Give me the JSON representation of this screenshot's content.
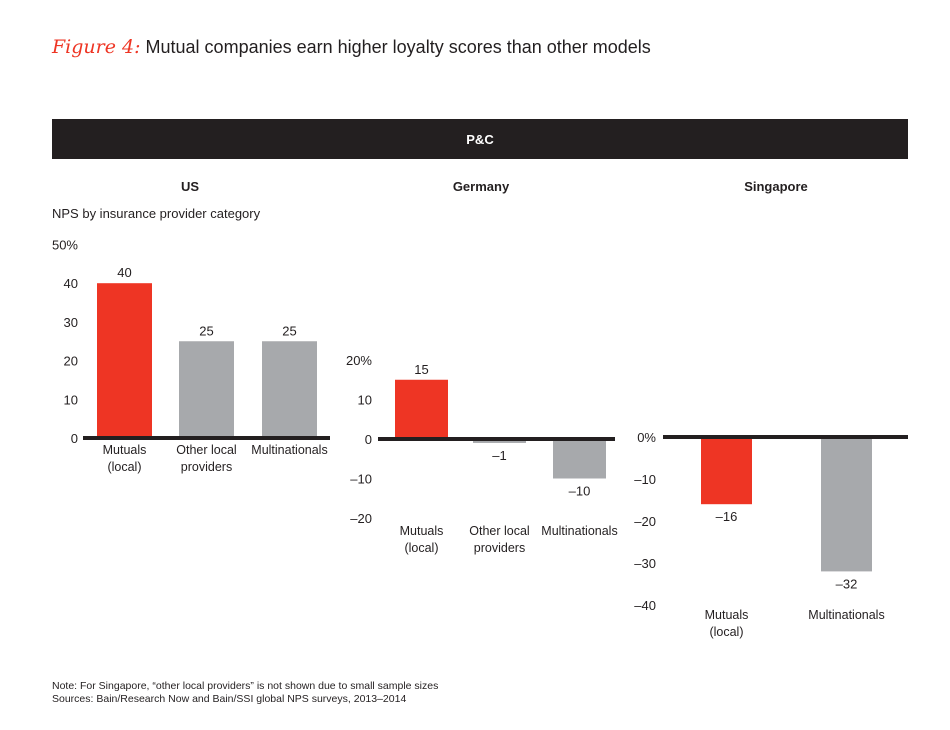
{
  "title": {
    "figure_label": "Figure 4:",
    "text": "Mutual companies earn higher loyalty scores than other models"
  },
  "header": "P&C",
  "colors": {
    "mutual": "#ee3524",
    "other": "#a7a9ac",
    "axis": "#231f20"
  },
  "chart_data": [
    {
      "type": "bar",
      "title": "US",
      "ylabel": "NPS by insurance provider category",
      "categories": [
        "Mutuals (local)",
        "Other local providers",
        "Multinationals"
      ],
      "values": [
        40,
        25,
        25
      ],
      "data_labels": [
        "40",
        "25",
        "25"
      ],
      "yticks": [
        0,
        10,
        20,
        30,
        40,
        50
      ],
      "ytick_labels": [
        "0",
        "10",
        "20",
        "30",
        "40",
        "50%"
      ],
      "ylim": [
        0,
        50
      ]
    },
    {
      "type": "bar",
      "title": "Germany",
      "categories": [
        "Mutuals (local)",
        "Other local providers",
        "Multinationals"
      ],
      "values": [
        15,
        -1,
        -10
      ],
      "data_labels": [
        "15",
        "–1",
        "–10"
      ],
      "yticks": [
        -20,
        -10,
        0,
        10,
        20
      ],
      "ytick_labels": [
        "–20",
        "–10",
        "0",
        "10",
        "20%"
      ],
      "ylim": [
        -20,
        20
      ]
    },
    {
      "type": "bar",
      "title": "Singapore",
      "categories": [
        "Mutuals (local)",
        "Multinationals"
      ],
      "values": [
        -16,
        -32
      ],
      "data_labels": [
        "–16",
        "–32"
      ],
      "yticks": [
        -40,
        -30,
        -20,
        -10,
        0
      ],
      "ytick_labels": [
        "–40",
        "–30",
        "–20",
        "–10",
        "0%"
      ],
      "ylim": [
        -40,
        0
      ]
    }
  ],
  "notes": [
    "Note: For Singapore, “other local providers” is not shown due to small sample sizes",
    "Sources: Bain/Research Now and Bain/SSI global NPS surveys, 2013–2014"
  ]
}
